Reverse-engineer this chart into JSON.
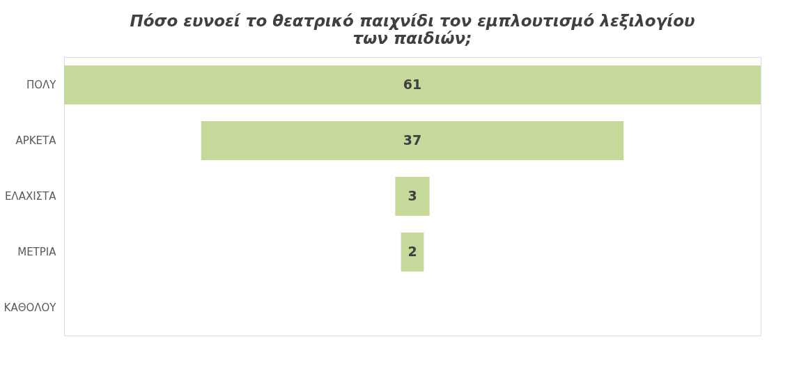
{
  "chart_data": {
    "type": "other",
    "title": "Πόσο ευνοεί το θεατρικό παιχνίδι τον εμπλουτισμό λεξιλογίου\nτων παιδιών;",
    "categories": [
      "ΠΟΛΥ",
      "ΑΡΚΕΤΑ",
      "ΕΛΑΧΙΣΤΑ",
      "ΜΕΤΡΙΑ",
      "ΚΑΘΟΛΟΥ"
    ],
    "values": [
      61,
      37,
      3,
      2,
      null
    ],
    "color": "#c5d99b",
    "data_labels": true
  }
}
